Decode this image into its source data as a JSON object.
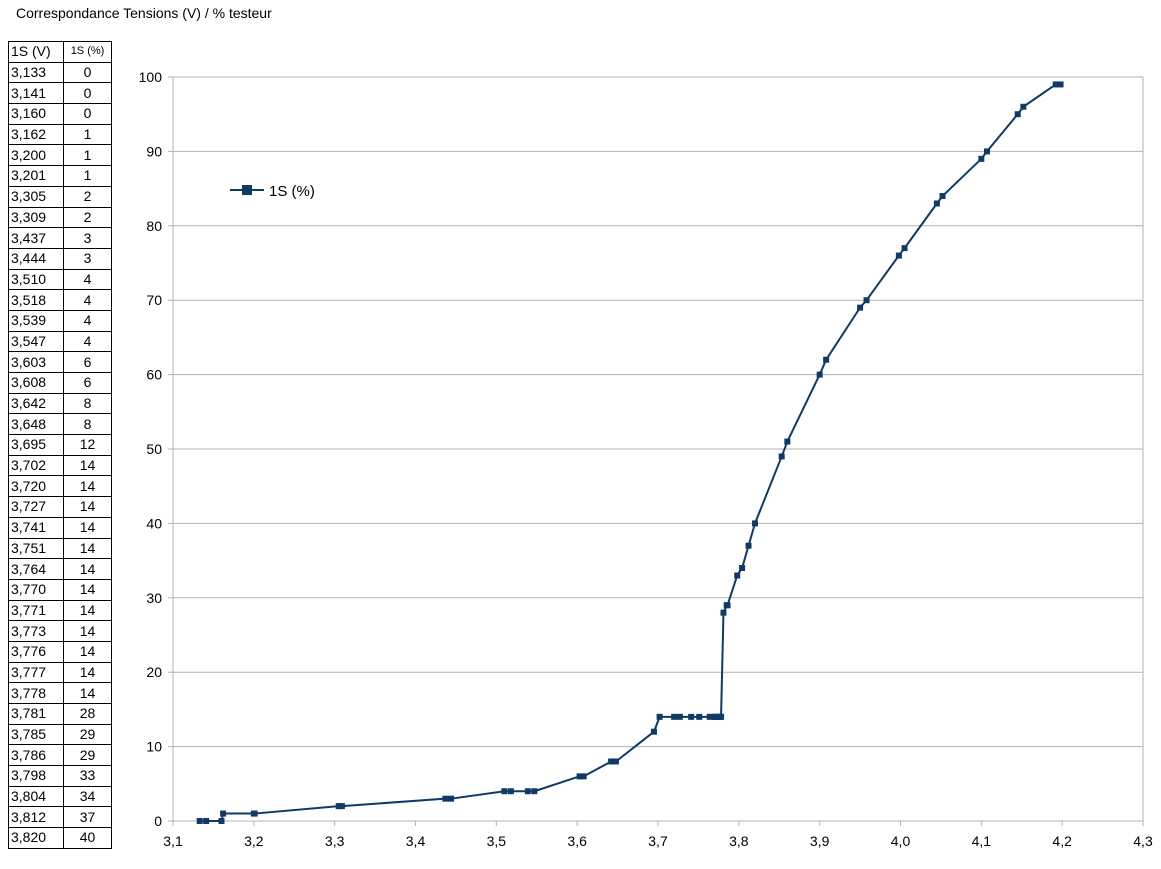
{
  "page": {
    "title": "Correspondance Tensions (V) / % testeur"
  },
  "table": {
    "headers": [
      "1S (V)",
      "1S (%)"
    ],
    "rows": [
      [
        "3,133",
        "0"
      ],
      [
        "3,141",
        "0"
      ],
      [
        "3,160",
        "0"
      ],
      [
        "3,162",
        "1"
      ],
      [
        "3,200",
        "1"
      ],
      [
        "3,201",
        "1"
      ],
      [
        "3,305",
        "2"
      ],
      [
        "3,309",
        "2"
      ],
      [
        "3,437",
        "3"
      ],
      [
        "3,444",
        "3"
      ],
      [
        "3,510",
        "4"
      ],
      [
        "3,518",
        "4"
      ],
      [
        "3,539",
        "4"
      ],
      [
        "3,547",
        "4"
      ],
      [
        "3,603",
        "6"
      ],
      [
        "3,608",
        "6"
      ],
      [
        "3,642",
        "8"
      ],
      [
        "3,648",
        "8"
      ],
      [
        "3,695",
        "12"
      ],
      [
        "3,702",
        "14"
      ],
      [
        "3,720",
        "14"
      ],
      [
        "3,727",
        "14"
      ],
      [
        "3,741",
        "14"
      ],
      [
        "3,751",
        "14"
      ],
      [
        "3,764",
        "14"
      ],
      [
        "3,770",
        "14"
      ],
      [
        "3,771",
        "14"
      ],
      [
        "3,773",
        "14"
      ],
      [
        "3,776",
        "14"
      ],
      [
        "3,777",
        "14"
      ],
      [
        "3,778",
        "14"
      ],
      [
        "3,781",
        "28"
      ],
      [
        "3,785",
        "29"
      ],
      [
        "3,786",
        "29"
      ],
      [
        "3,798",
        "33"
      ],
      [
        "3,804",
        "34"
      ],
      [
        "3,812",
        "37"
      ],
      [
        "3,820",
        "40"
      ]
    ]
  },
  "chart_data": {
    "type": "line",
    "title": "",
    "xlabel": "",
    "ylabel": "",
    "xlim": [
      3.1,
      4.3
    ],
    "ylim": [
      0,
      100
    ],
    "x_ticks": [
      3.1,
      3.2,
      3.3,
      3.4,
      3.5,
      3.6,
      3.7,
      3.8,
      3.9,
      4.0,
      4.1,
      4.2,
      4.3
    ],
    "x_tick_labels": [
      "3,1",
      "3,2",
      "3,3",
      "3,4",
      "3,5",
      "3,6",
      "3,7",
      "3,8",
      "3,9",
      "4,0",
      "4,1",
      "4,2",
      "4,3"
    ],
    "y_ticks": [
      0,
      10,
      20,
      30,
      40,
      50,
      60,
      70,
      80,
      90,
      100
    ],
    "y_tick_labels": [
      "0",
      "10",
      "20",
      "30",
      "40",
      "50",
      "60",
      "70",
      "80",
      "90",
      "100"
    ],
    "grid": "horizontal",
    "legend": "top-left",
    "marker": "square",
    "series": [
      {
        "name": "1S (%)",
        "color": "#0f3a66",
        "points": [
          [
            3.133,
            0
          ],
          [
            3.141,
            0
          ],
          [
            3.16,
            0
          ],
          [
            3.162,
            1
          ],
          [
            3.2,
            1
          ],
          [
            3.201,
            1
          ],
          [
            3.305,
            2
          ],
          [
            3.309,
            2
          ],
          [
            3.437,
            3
          ],
          [
            3.444,
            3
          ],
          [
            3.51,
            4
          ],
          [
            3.518,
            4
          ],
          [
            3.539,
            4
          ],
          [
            3.547,
            4
          ],
          [
            3.603,
            6
          ],
          [
            3.608,
            6
          ],
          [
            3.642,
            8
          ],
          [
            3.648,
            8
          ],
          [
            3.695,
            12
          ],
          [
            3.702,
            14
          ],
          [
            3.72,
            14
          ],
          [
            3.727,
            14
          ],
          [
            3.741,
            14
          ],
          [
            3.751,
            14
          ],
          [
            3.764,
            14
          ],
          [
            3.77,
            14
          ],
          [
            3.771,
            14
          ],
          [
            3.773,
            14
          ],
          [
            3.776,
            14
          ],
          [
            3.777,
            14
          ],
          [
            3.778,
            14
          ],
          [
            3.781,
            28
          ],
          [
            3.785,
            29
          ],
          [
            3.786,
            29
          ],
          [
            3.798,
            33
          ],
          [
            3.804,
            34
          ],
          [
            3.812,
            37
          ],
          [
            3.82,
            40
          ],
          [
            3.853,
            49
          ],
          [
            3.86,
            51
          ],
          [
            3.9,
            60
          ],
          [
            3.908,
            62
          ],
          [
            3.95,
            69
          ],
          [
            3.958,
            70
          ],
          [
            3.998,
            76
          ],
          [
            4.005,
            77
          ],
          [
            4.045,
            83
          ],
          [
            4.052,
            84
          ],
          [
            4.1,
            89
          ],
          [
            4.107,
            90
          ],
          [
            4.145,
            95
          ],
          [
            4.152,
            96
          ],
          [
            4.192,
            99
          ],
          [
            4.198,
            99
          ]
        ]
      }
    ]
  }
}
